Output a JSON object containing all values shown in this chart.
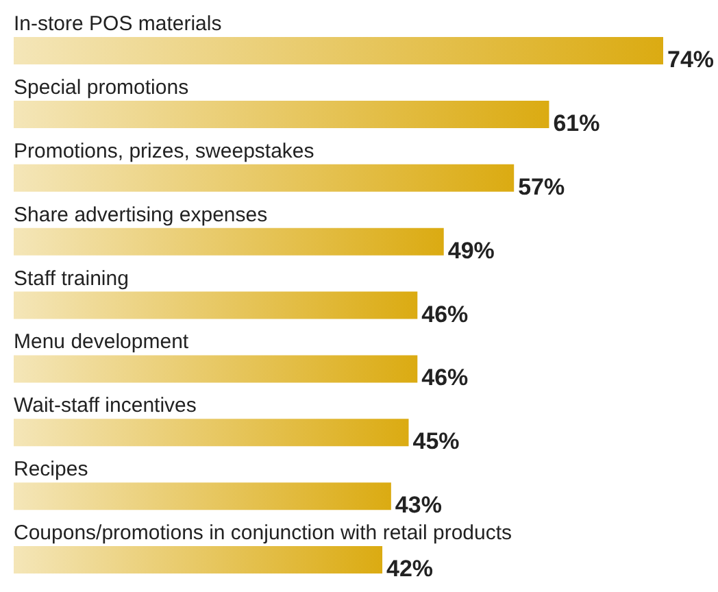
{
  "chart_data": {
    "type": "bar",
    "orientation": "horizontal",
    "categories": [
      "In-store POS materials",
      "Special promotions",
      "Promotions, prizes, sweepstakes",
      "Share advertising expenses",
      "Staff training",
      "Menu development",
      "Wait-staff incentives",
      "Recipes",
      "Coupons/promotions in conjunction with retail products"
    ],
    "values": [
      74,
      61,
      57,
      49,
      46,
      46,
      45,
      43,
      42
    ],
    "value_labels": [
      "74%",
      "61%",
      "57%",
      "49%",
      "46%",
      "46%",
      "45%",
      "43%",
      "42%"
    ],
    "color": "#dbab12"
  }
}
